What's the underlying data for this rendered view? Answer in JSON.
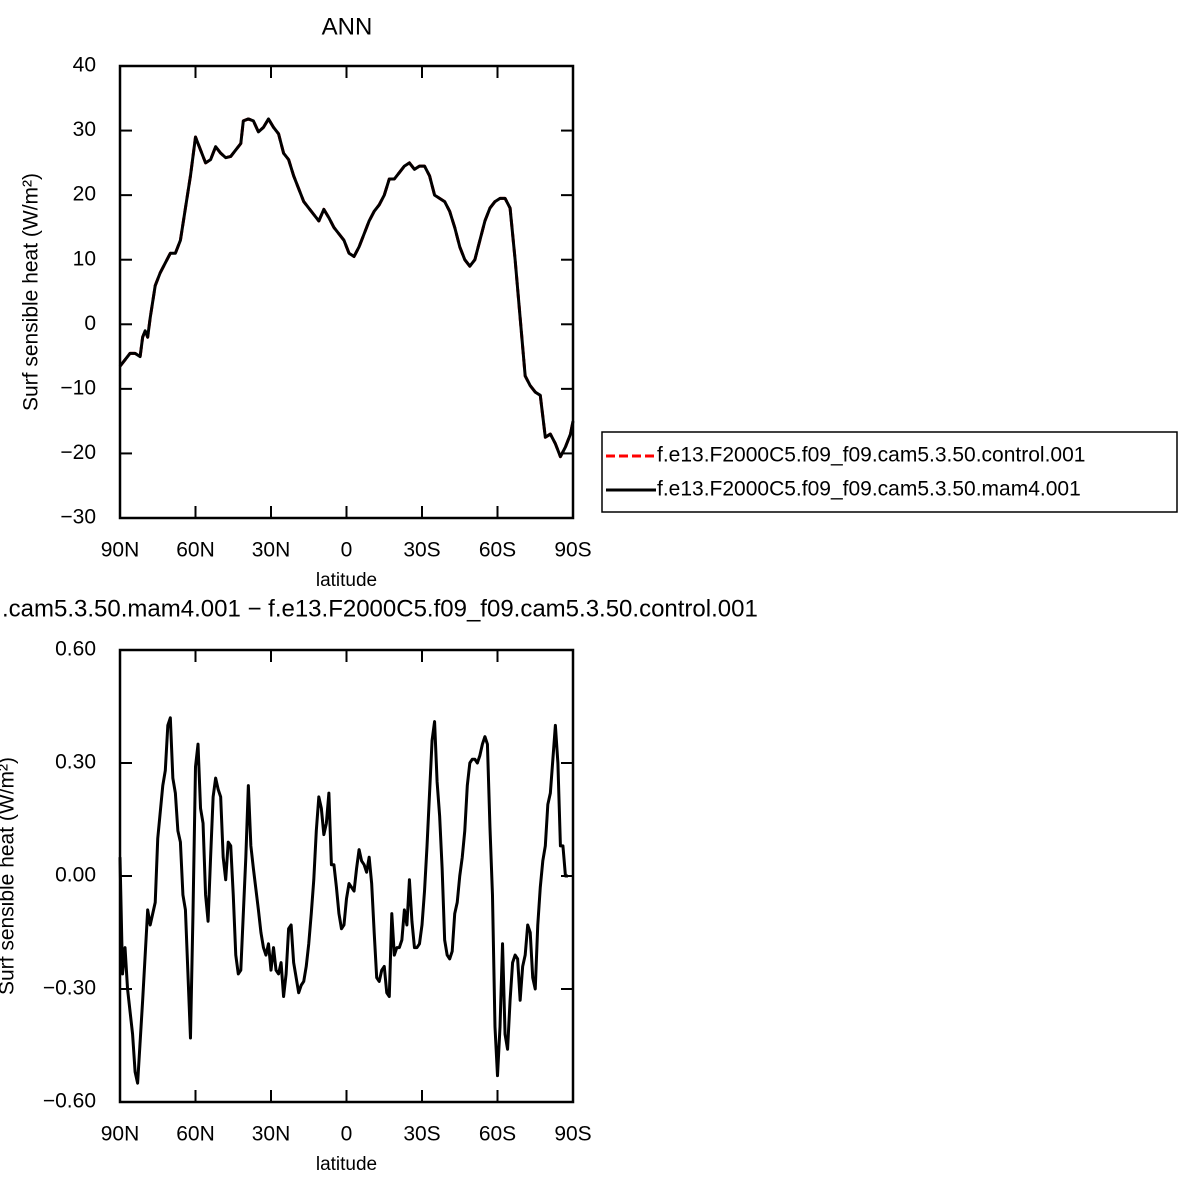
{
  "chart_data": [
    {
      "type": "line",
      "title": "ANN",
      "xlabel": "latitude",
      "ylabel": "Surf sensible heat (W/m²)",
      "x": [
        90,
        88,
        86,
        84,
        82,
        81,
        80,
        79,
        78,
        76,
        74,
        72,
        70,
        68,
        66,
        64,
        62,
        60,
        58,
        56,
        54,
        52,
        50,
        48,
        46,
        44,
        42,
        41,
        39,
        37,
        35,
        33,
        31,
        29,
        27,
        25,
        23,
        21,
        19,
        17,
        15,
        13,
        11,
        9,
        7,
        5,
        3,
        1,
        -1,
        -3,
        -5,
        -7,
        -9,
        -11,
        -13,
        -15,
        -17,
        -19,
        -21,
        -23,
        -25,
        -27,
        -29,
        -31,
        -33,
        -35,
        -37,
        -39,
        -41,
        -43,
        -45,
        -47,
        -49,
        -51,
        -53,
        -55,
        -57,
        -59,
        -61,
        -63,
        -65,
        -67,
        -69,
        -71,
        -73,
        -75,
        -77,
        -79,
        -81,
        -83,
        -85,
        -87,
        -89,
        -90
      ],
      "series": [
        {
          "name": "f.e13.F2000C5.f09_f09.cam5.3.50.control.001",
          "color": "#ff0000",
          "dashed": true,
          "values": [
            -6.5,
            -5.5,
            -4.5,
            -4.5,
            -5,
            -2,
            -1,
            -2,
            1,
            6,
            8,
            9.5,
            11,
            11,
            13,
            18,
            23,
            29,
            27,
            25,
            25.5,
            27.5,
            26.5,
            25.8,
            26,
            27,
            28,
            31.5,
            31.8,
            31.5,
            29.8,
            30.5,
            31.8,
            30.5,
            29.5,
            26.5,
            25.5,
            23,
            21,
            19,
            18,
            17,
            16,
            17.8,
            16.5,
            15,
            14,
            13,
            11,
            10.5,
            12,
            14,
            16,
            17.5,
            18.5,
            20,
            22.5,
            22.5,
            23.5,
            24.5,
            25,
            24,
            24.5,
            24.5,
            23,
            20,
            19.5,
            19,
            17.5,
            15,
            12,
            10,
            9,
            10,
            13,
            16,
            18,
            19,
            19.5,
            19.5,
            18,
            10,
            1,
            -8,
            -9.5,
            -10.5,
            -11,
            -17.5,
            -17,
            -18.5,
            -20.5,
            -19,
            -17,
            -15
          ]
        },
        {
          "name": "f.e13.F2000C5.f09_f09.cam5.3.50.mam4.001",
          "color": "#000000",
          "dashed": false,
          "values": [
            -6.5,
            -5.5,
            -4.5,
            -4.5,
            -5,
            -2,
            -1,
            -2,
            1,
            6,
            8,
            9.5,
            11,
            11,
            13,
            18,
            23,
            29,
            27,
            25,
            25.5,
            27.5,
            26.5,
            25.8,
            26,
            27,
            28,
            31.5,
            31.8,
            31.5,
            29.8,
            30.5,
            31.8,
            30.5,
            29.5,
            26.5,
            25.5,
            23,
            21,
            19,
            18,
            17,
            16,
            17.8,
            16.5,
            15,
            14,
            13,
            11,
            10.5,
            12,
            14,
            16,
            17.5,
            18.5,
            20,
            22.5,
            22.5,
            23.5,
            24.5,
            25,
            24,
            24.5,
            24.5,
            23,
            20,
            19.5,
            19,
            17.5,
            15,
            12,
            10,
            9,
            10,
            13,
            16,
            18,
            19,
            19.5,
            19.5,
            18,
            10,
            1,
            -8,
            -9.5,
            -10.5,
            -11,
            -17.5,
            -17,
            -18.5,
            -20.5,
            -19,
            -17,
            -15
          ]
        }
      ],
      "xlim": [
        90,
        -90
      ],
      "xticks": [
        {
          "value": 90,
          "label": "90N"
        },
        {
          "value": 60,
          "label": "60N"
        },
        {
          "value": 30,
          "label": "30N"
        },
        0,
        {
          "value": -30,
          "label": "30S"
        },
        {
          "value": -60,
          "label": "60S"
        },
        {
          "value": -90,
          "label": "90S"
        }
      ],
      "ylim": [
        -30,
        40
      ],
      "yticks": [
        40,
        30,
        20,
        10,
        0,
        {
          "value": -10,
          "label": "−10"
        },
        {
          "value": -20,
          "label": "−20"
        },
        {
          "value": -30,
          "label": "−30"
        }
      ],
      "legend": "right"
    },
    {
      "type": "line",
      "title": ".cam5.3.50.mam4.001 − f.e13.F2000C5.f09_f09.cam5.3.50.control.001",
      "xlabel": "latitude",
      "ylabel": "Surf sensible heat (W/m²)",
      "x": [
        90,
        89,
        88,
        87,
        85,
        84,
        83,
        81,
        79,
        78,
        76,
        75,
        73,
        72,
        71,
        70,
        69,
        68,
        67,
        66,
        65,
        64,
        62,
        61,
        60,
        59,
        58,
        57,
        56,
        55,
        54,
        53,
        52,
        51,
        50,
        49,
        48,
        47,
        46,
        45,
        44,
        43,
        42,
        40,
        39,
        38,
        37,
        35,
        34,
        33,
        32,
        31,
        30,
        29,
        28,
        27,
        26,
        25,
        24,
        23,
        22,
        21,
        19,
        18,
        17,
        16,
        15,
        14,
        13,
        12,
        11,
        10,
        9,
        8,
        7,
        6,
        5,
        4,
        3,
        2,
        1,
        0,
        -1,
        -2,
        -3,
        -4,
        -5,
        -6,
        -7,
        -8,
        -9,
        -10,
        -11,
        -12,
        -13,
        -14,
        -15,
        -16,
        -17,
        -18,
        -19,
        -20,
        -21,
        -22,
        -23,
        -24,
        -25,
        -26,
        -27,
        -28,
        -29,
        -30,
        -31,
        -32,
        -33,
        -34,
        -35,
        -36,
        -37,
        -38,
        -39,
        -40,
        -41,
        -42,
        -43,
        -44,
        -45,
        -46,
        -47,
        -48,
        -49,
        -50,
        -51,
        -52,
        -53,
        -54,
        -55,
        -56,
        -57,
        -58,
        -59,
        -60,
        -61,
        -62,
        -63,
        -64,
        -65,
        -66,
        -67,
        -68,
        -69,
        -70,
        -71,
        -72,
        -73,
        -74,
        -75,
        -76,
        -77,
        -78,
        -79,
        -80,
        -81,
        -82,
        -83,
        -84,
        -85,
        -86,
        -87,
        -88
      ],
      "values": [
        0.05,
        -0.26,
        -0.19,
        -0.3,
        -0.42,
        -0.52,
        -0.55,
        -0.33,
        -0.09,
        -0.13,
        -0.07,
        0.1,
        0.24,
        0.28,
        0.4,
        0.42,
        0.26,
        0.22,
        0.12,
        0.09,
        -0.05,
        -0.09,
        -0.43,
        -0.1,
        0.29,
        0.35,
        0.18,
        0.14,
        -0.05,
        -0.12,
        0.05,
        0.21,
        0.26,
        0.23,
        0.21,
        0.05,
        -0.01,
        0.09,
        0.08,
        -0.05,
        -0.21,
        -0.26,
        -0.25,
        0.05,
        0.24,
        0.08,
        0.02,
        -0.09,
        -0.15,
        -0.19,
        -0.21,
        -0.18,
        -0.25,
        -0.19,
        -0.25,
        -0.26,
        -0.23,
        -0.32,
        -0.26,
        -0.14,
        -0.13,
        -0.23,
        -0.31,
        -0.29,
        -0.28,
        -0.24,
        -0.18,
        -0.1,
        -0.01,
        0.12,
        0.21,
        0.18,
        0.11,
        0.14,
        0.22,
        0.03,
        0.03,
        -0.03,
        -0.1,
        -0.14,
        -0.13,
        -0.06,
        -0.02,
        -0.03,
        -0.04,
        0.02,
        0.07,
        0.04,
        0.03,
        0.01,
        0.05,
        -0.02,
        -0.15,
        -0.27,
        -0.28,
        -0.25,
        -0.24,
        -0.31,
        -0.32,
        -0.1,
        -0.21,
        -0.19,
        -0.19,
        -0.17,
        -0.09,
        -0.13,
        -0.01,
        -0.12,
        -0.19,
        -0.19,
        -0.18,
        -0.13,
        -0.04,
        0.08,
        0.22,
        0.36,
        0.41,
        0.25,
        0.16,
        0.02,
        -0.17,
        -0.21,
        -0.22,
        -0.2,
        -0.1,
        -0.07,
        0.0,
        0.05,
        0.12,
        0.24,
        0.3,
        0.31,
        0.31,
        0.3,
        0.32,
        0.35,
        0.37,
        0.35,
        0.13,
        -0.05,
        -0.4,
        -0.53,
        -0.4,
        -0.18,
        -0.42,
        -0.46,
        -0.33,
        -0.23,
        -0.21,
        -0.22,
        -0.33,
        -0.24,
        -0.21,
        -0.13,
        -0.15,
        -0.27,
        -0.3,
        -0.13,
        -0.03,
        0.04,
        0.08,
        0.19,
        0.22,
        0.31,
        0.4,
        0.3,
        0.08,
        0.08,
        0.0,
        0.0
      ],
      "color": "#000000",
      "xlim": [
        90,
        -90
      ],
      "xticks": [
        {
          "value": 90,
          "label": "90N"
        },
        {
          "value": 60,
          "label": "60N"
        },
        {
          "value": 30,
          "label": "30N"
        },
        0,
        {
          "value": -30,
          "label": "30S"
        },
        {
          "value": -60,
          "label": "60S"
        },
        {
          "value": -90,
          "label": "90S"
        }
      ],
      "ylim": [
        -0.6,
        0.6
      ],
      "yticks": [
        {
          "value": 0.6,
          "label": "0.60"
        },
        {
          "value": 0.3,
          "label": "0.30"
        },
        {
          "value": 0,
          "label": "0.00"
        },
        {
          "value": -0.3,
          "label": "−0.30"
        },
        {
          "value": -0.6,
          "label": "−0.60"
        }
      ]
    }
  ]
}
